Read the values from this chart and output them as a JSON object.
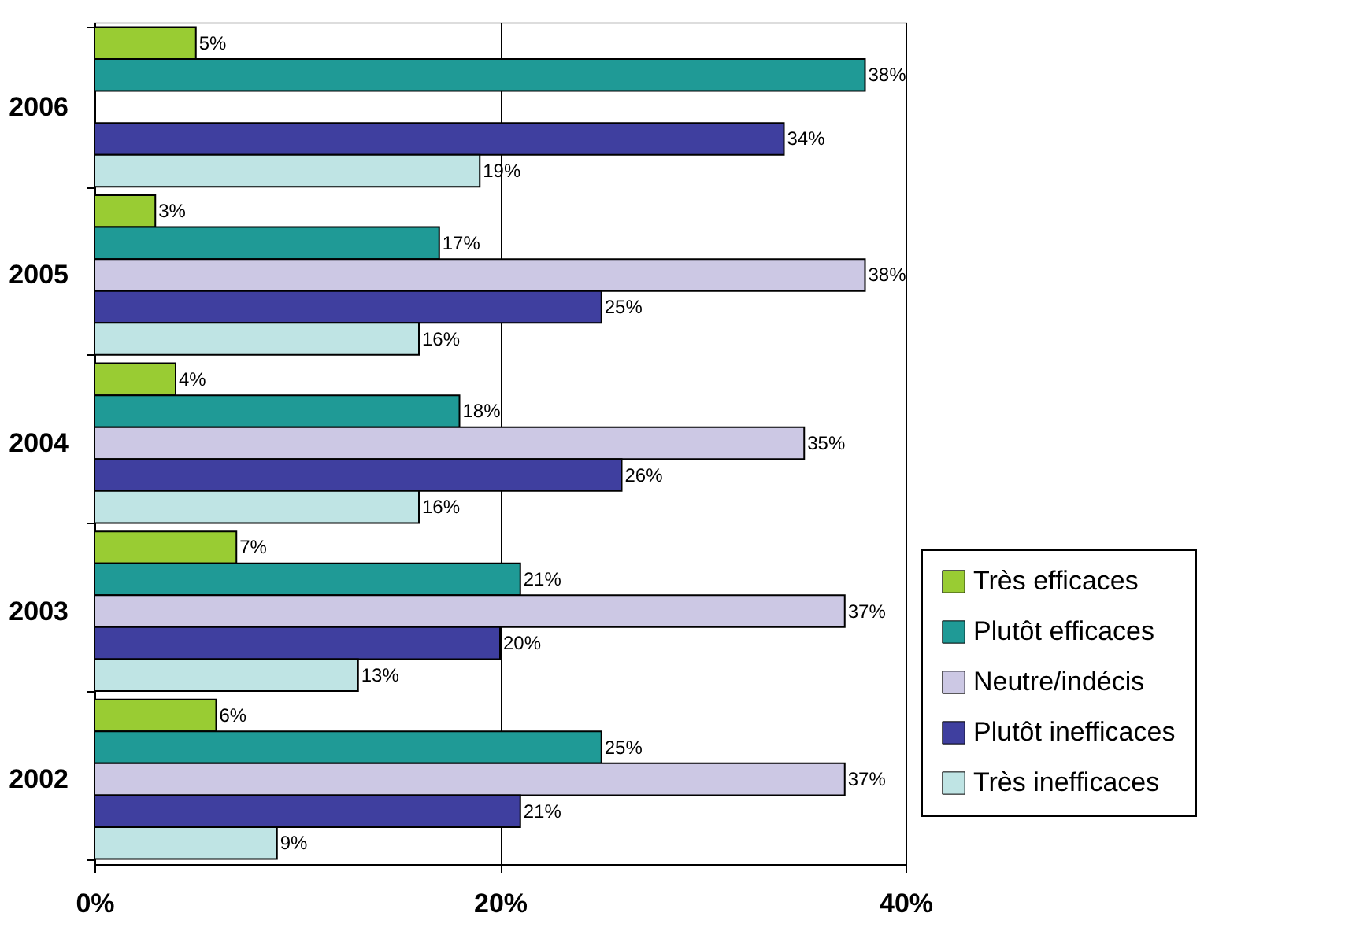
{
  "chart_data": {
    "type": "bar",
    "orientation": "horizontal",
    "categories": [
      "2006",
      "2005",
      "2004",
      "2003",
      "2002"
    ],
    "series": [
      {
        "name": "Très efficaces",
        "color": "#99cc33",
        "values": [
          5,
          3,
          4,
          7,
          6
        ],
        "value_labels": [
          "5%",
          "3%",
          "4%",
          "7%",
          "6%"
        ]
      },
      {
        "name": "Plutôt efficaces",
        "color": "#1f9a96",
        "values": [
          38,
          17,
          18,
          21,
          25
        ],
        "value_labels": [
          "38%",
          "17%",
          "18%",
          "21%",
          "25%"
        ]
      },
      {
        "name": "Neutre/indécis",
        "color": "#ccc8e4",
        "values": [
          null,
          38,
          35,
          37,
          37
        ],
        "value_labels": [
          null,
          "38%",
          "35%",
          "37%",
          "37%"
        ]
      },
      {
        "name": "Plutôt inefficaces",
        "color": "#3f3f9f",
        "values": [
          34,
          25,
          26,
          20,
          21
        ],
        "value_labels": [
          "34%",
          "25%",
          "26%",
          "20%",
          "21%"
        ]
      },
      {
        "name": "Très inefficaces",
        "color": "#bfe4e4",
        "values": [
          19,
          16,
          16,
          13,
          9
        ],
        "value_labels": [
          "19%",
          "16%",
          "16%",
          "13%",
          "9%"
        ]
      }
    ],
    "xlim": [
      0,
      40
    ],
    "xticks": [
      {
        "value": 0,
        "label": "0%"
      },
      {
        "value": 20,
        "label": "20%"
      },
      {
        "value": 40,
        "label": "40%"
      }
    ],
    "grid": "x",
    "legend": "bottom right"
  }
}
